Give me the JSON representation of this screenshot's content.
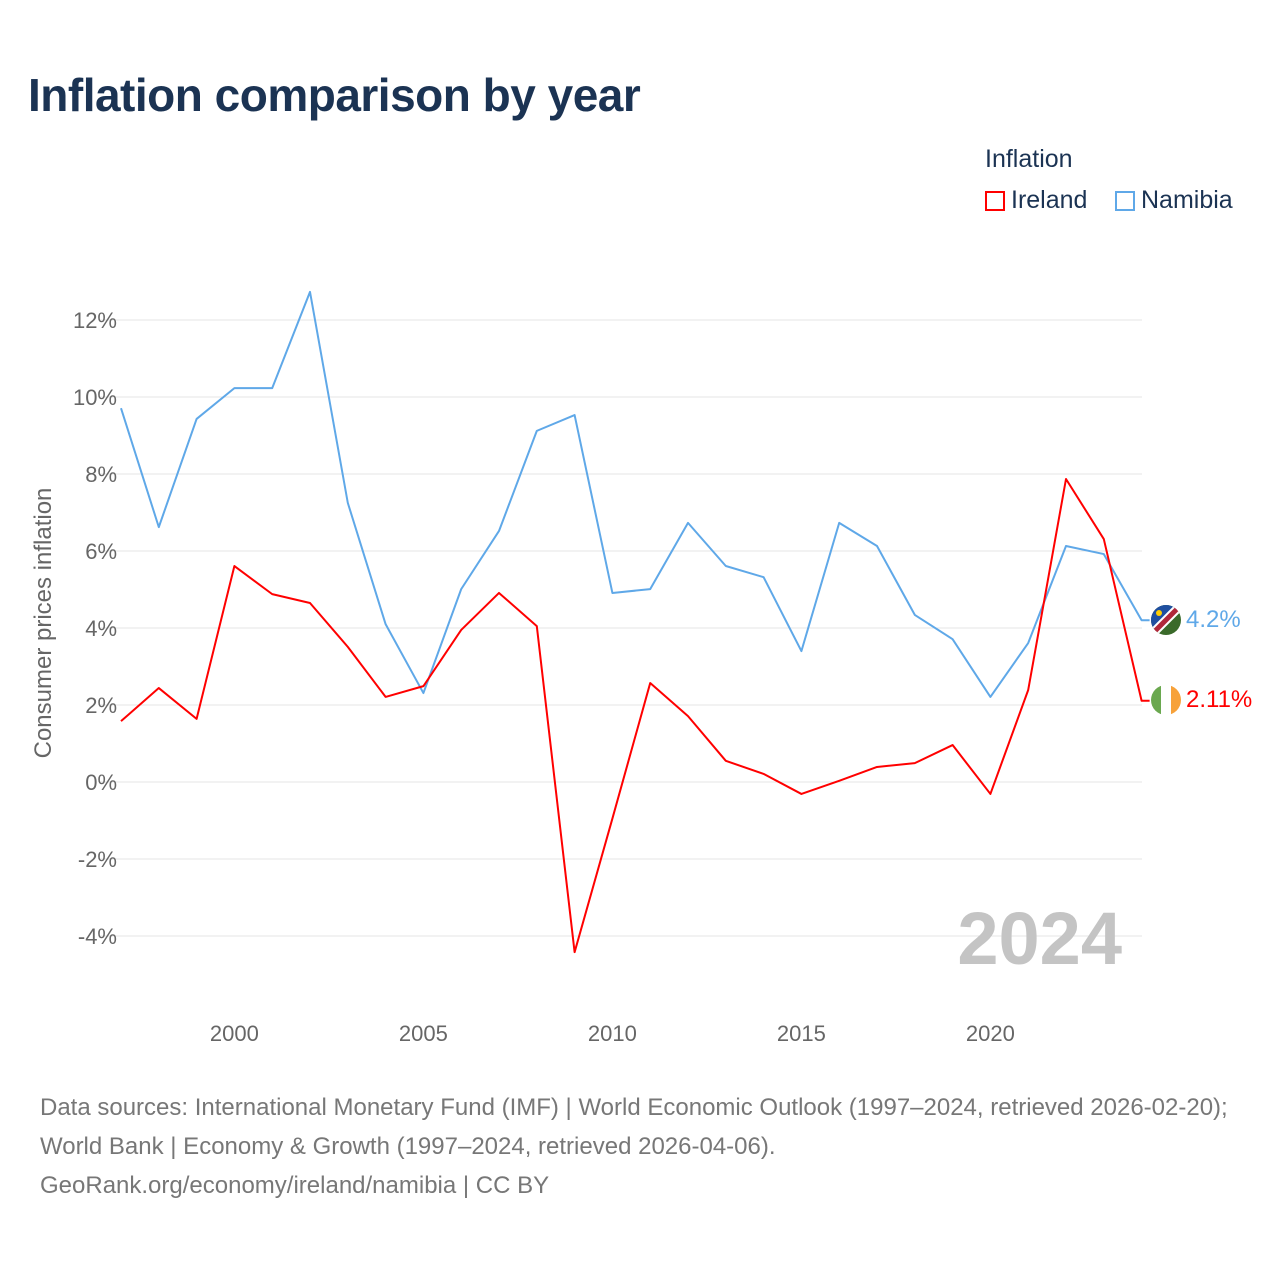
{
  "title": "Inflation comparison by year",
  "legend": {
    "title": "Inflation",
    "items": [
      {
        "name": "Ireland",
        "color": "#ff0000"
      },
      {
        "name": "Namibia",
        "color": "#5fa8e8"
      }
    ]
  },
  "watermark_year": "2024",
  "sources": "Data sources: International Monetary Fund (IMF) | World Economic Outlook (1997–2024, retrieved 2026-02-20); World Bank | Economy & Growth (1997–2024, retrieved 2026-04-06).",
  "site": "GeoRank.org/economy/ireland/namibia | CC BY",
  "chart_data": {
    "type": "line",
    "title": "Inflation comparison by year",
    "xlabel": "",
    "ylabel": "Consumer prices inflation",
    "x": [
      1997,
      1998,
      1999,
      2000,
      2001,
      2002,
      2003,
      2004,
      2005,
      2006,
      2007,
      2008,
      2009,
      2010,
      2011,
      2012,
      2013,
      2014,
      2015,
      2016,
      2017,
      2018,
      2019,
      2020,
      2021,
      2022,
      2023,
      2024
    ],
    "xticks": [
      2000,
      2005,
      2010,
      2015,
      2020
    ],
    "yticks": [
      -4,
      -2,
      0,
      2,
      4,
      6,
      8,
      10,
      12
    ],
    "ytick_labels": [
      "-4%",
      "-2%",
      "0%",
      "2%",
      "4%",
      "6%",
      "8%",
      "10%",
      "12%"
    ],
    "ylim": [
      -5.5,
      13.5
    ],
    "grid": true,
    "legend_position": "top-right",
    "series": [
      {
        "name": "Ireland",
        "color": "#ff0000",
        "end_label": "2.11%",
        "values": [
          1.58,
          2.44,
          1.64,
          5.61,
          4.88,
          4.65,
          3.51,
          2.21,
          2.49,
          3.95,
          4.91,
          4.05,
          -4.42,
          -0.95,
          2.57,
          1.71,
          0.55,
          0.21,
          -0.31,
          0.03,
          0.39,
          0.49,
          0.96,
          -0.31,
          2.39,
          7.87,
          6.31,
          2.11
        ]
      },
      {
        "name": "Namibia",
        "color": "#5fa8e8",
        "end_label": "4.2%",
        "values": [
          9.71,
          6.62,
          9.43,
          10.23,
          10.23,
          12.73,
          7.25,
          4.1,
          2.31,
          5.01,
          6.52,
          9.12,
          9.53,
          4.91,
          5.01,
          6.73,
          5.61,
          5.32,
          3.4,
          6.73,
          6.13,
          4.34,
          3.71,
          2.21,
          3.61,
          6.13,
          5.92,
          4.2
        ]
      }
    ]
  }
}
